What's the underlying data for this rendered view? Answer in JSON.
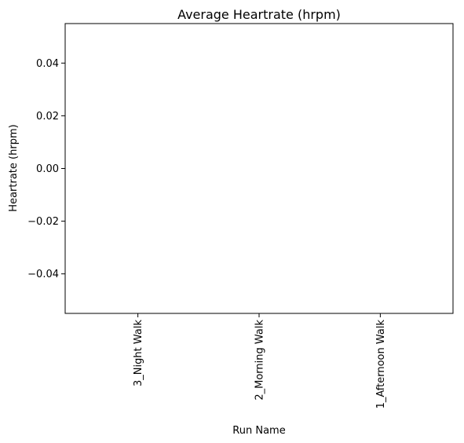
{
  "chart_data": {
    "type": "bar",
    "title": "Average Heartrate (hrpm)",
    "xlabel": "Run Name",
    "ylabel": "Heartrate (hrpm)",
    "categories": [
      "3_Night Walk",
      "2_Morning Walk",
      "1_Afternoon Walk"
    ],
    "values": [
      0,
      0,
      0
    ],
    "ylim": [
      -0.055,
      0.055
    ],
    "yticks": [
      0.04,
      0.02,
      0.0,
      -0.02,
      -0.04
    ],
    "ytick_labels": [
      "0.04",
      "0.02",
      "0.00",
      "−0.02",
      "−0.04"
    ],
    "xtick_rotation": "vertical",
    "grid": false,
    "legend": "none",
    "colors": {
      "axis": "#000000",
      "bar": "#1f77b4",
      "background": "#ffffff"
    }
  }
}
